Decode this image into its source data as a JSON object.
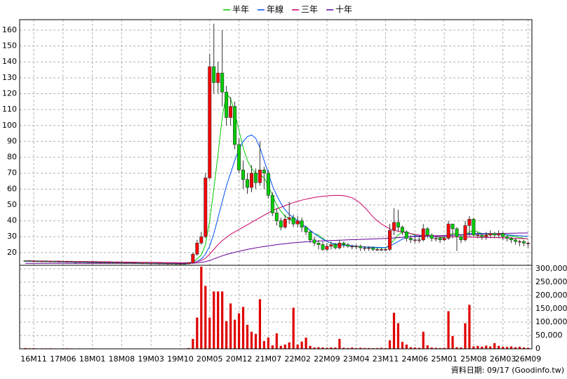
{
  "chart_data": [
    {
      "type": "candlestick",
      "categories": [
        null,
        null,
        "16M11",
        null,
        null,
        null,
        null,
        null,
        null,
        "17M06",
        null,
        null,
        null,
        null,
        null,
        null,
        "18M01",
        null,
        null,
        null,
        null,
        null,
        null,
        "18M08",
        null,
        null,
        null,
        null,
        null,
        null,
        "19M03",
        null,
        null,
        null,
        null,
        null,
        null,
        "19M10",
        null,
        null,
        null,
        null,
        null,
        null,
        "20M05",
        null,
        null,
        null,
        null,
        null,
        null,
        "20M12",
        null,
        null,
        null,
        null,
        null,
        null,
        "21M07",
        null,
        null,
        null,
        null,
        null,
        null,
        "22M02",
        null,
        null,
        null,
        null,
        null,
        null,
        "22M09",
        null,
        null,
        null,
        null,
        null,
        null,
        "23M04",
        null,
        null,
        null,
        null,
        null,
        null,
        "23M11",
        null,
        null,
        null,
        null,
        null,
        null,
        "24M06",
        null,
        null,
        null,
        null,
        null,
        null,
        "25M01",
        null,
        null,
        null,
        null,
        null,
        null,
        "25M08",
        null,
        null,
        null,
        null,
        null,
        null,
        "26M03",
        null,
        null,
        null,
        null,
        null,
        "26M09"
      ],
      "open": [
        14.9,
        14.8,
        14.6,
        14.7,
        14.5,
        14.6,
        14.4,
        14.5,
        14.3,
        14.4,
        14.2,
        14.3,
        14.1,
        14.0,
        14.2,
        14.0,
        13.9,
        14.0,
        13.8,
        13.9,
        13.7,
        13.8,
        13.6,
        13.7,
        13.5,
        13.6,
        13.4,
        13.5,
        13.3,
        13.4,
        13.2,
        13.3,
        13.1,
        13.2,
        13.0,
        13.1,
        13.0,
        12.9,
        13.0,
        12.9,
        13.5,
        19,
        26,
        30,
        67,
        137,
        127,
        133,
        121,
        105,
        112,
        88,
        72,
        66,
        61,
        70,
        64,
        72,
        70,
        56,
        45,
        40,
        36,
        41,
        42,
        38,
        40,
        36,
        33,
        28,
        26,
        25,
        22,
        24,
        25,
        23,
        26,
        25,
        24,
        24,
        24,
        23,
        23,
        23,
        22,
        22,
        22,
        22,
        34,
        39,
        36,
        33,
        29,
        28,
        28,
        28,
        35,
        31,
        29,
        29,
        28,
        29,
        38,
        35,
        30,
        28,
        37,
        41,
        31,
        31,
        30,
        31,
        32,
        31,
        32,
        30,
        29,
        28,
        27,
        27,
        26
      ],
      "high": [
        15.2,
        15.1,
        15.0,
        15.0,
        14.9,
        14.9,
        14.8,
        14.8,
        14.7,
        14.7,
        14.6,
        14.6,
        14.4,
        14.5,
        14.5,
        14.3,
        14.3,
        14.3,
        14.2,
        14.2,
        14.1,
        14.1,
        14.0,
        14.0,
        13.9,
        13.9,
        13.8,
        13.8,
        13.7,
        13.7,
        13.6,
        13.6,
        13.5,
        13.5,
        13.4,
        13.4,
        13.3,
        13.3,
        13.3,
        13.8,
        20,
        28,
        33,
        70,
        145,
        164,
        140,
        160,
        125,
        118,
        115,
        92,
        78,
        70,
        75,
        73,
        90,
        74,
        72,
        58,
        48,
        42,
        44,
        52,
        44,
        43,
        42,
        37,
        34,
        30,
        28,
        27,
        26,
        27,
        26,
        28,
        27,
        26,
        25,
        25,
        25,
        24,
        24,
        24,
        23,
        23,
        23,
        38,
        48,
        47,
        37,
        34,
        31,
        30,
        30,
        38,
        36,
        32,
        30,
        30,
        30,
        40,
        38,
        36,
        31,
        40,
        43,
        42,
        33,
        32,
        33,
        34,
        33,
        34,
        33,
        31,
        30,
        29,
        28,
        28,
        27
      ],
      "low": [
        14.5,
        14.3,
        14.3,
        14.2,
        14.2,
        14.1,
        14.1,
        14.0,
        14.0,
        13.9,
        13.9,
        13.8,
        13.7,
        13.7,
        13.7,
        13.6,
        13.6,
        13.5,
        13.5,
        13.4,
        13.4,
        13.3,
        13.3,
        13.2,
        13.2,
        13.1,
        13.1,
        13.0,
        13.0,
        12.9,
        12.9,
        12.8,
        12.8,
        12.7,
        12.7,
        12.7,
        12.6,
        12.6,
        12.6,
        12.6,
        13,
        18,
        25,
        29,
        66,
        120,
        120,
        112,
        100,
        100,
        85,
        70,
        60,
        57,
        58,
        60,
        62,
        60,
        54,
        43,
        37,
        34,
        35,
        38,
        36,
        36,
        33,
        31,
        26,
        24,
        22,
        21,
        21,
        22,
        22,
        22,
        23,
        23,
        22,
        22,
        21,
        21,
        21,
        21,
        21,
        21,
        21,
        21,
        31,
        33,
        31,
        27,
        26,
        26,
        26,
        27,
        29,
        27,
        27,
        26,
        27,
        28,
        29,
        21,
        26,
        27,
        30,
        30,
        29,
        28,
        28,
        29,
        29,
        29,
        28,
        27,
        26,
        25,
        24,
        24,
        23
      ],
      "close": [
        14.8,
        14.6,
        14.7,
        14.5,
        14.6,
        14.4,
        14.5,
        14.3,
        14.4,
        14.2,
        14.3,
        14.1,
        14.0,
        14.2,
        14.0,
        13.9,
        14.0,
        13.8,
        13.9,
        13.7,
        13.8,
        13.6,
        13.7,
        13.5,
        13.6,
        13.4,
        13.5,
        13.3,
        13.4,
        13.2,
        13.3,
        13.1,
        13.2,
        13.0,
        13.1,
        13.0,
        12.9,
        13.0,
        12.9,
        13.5,
        19,
        26,
        30,
        67,
        137,
        127,
        133,
        121,
        105,
        112,
        88,
        72,
        66,
        61,
        70,
        64,
        72,
        70,
        56,
        45,
        40,
        36,
        41,
        42,
        38,
        40,
        36,
        33,
        28,
        26,
        25,
        22,
        24,
        25,
        23,
        26,
        25,
        24,
        24,
        24,
        23,
        23,
        23,
        22,
        22,
        22,
        22,
        34,
        39,
        36,
        33,
        29,
        28,
        28,
        28,
        35,
        31,
        29,
        29,
        28,
        29,
        38,
        35,
        30,
        28,
        37,
        41,
        31,
        31,
        30,
        31,
        32,
        31,
        32,
        30,
        29,
        28,
        27,
        27,
        26,
        26
      ],
      "up_color": "#ff0000",
      "down_color": "#00cc00",
      "series": [
        {
          "name": "半年",
          "color": "#00cc00",
          "values": [
            14.6,
            14.6,
            14.6,
            14.6,
            14.5,
            14.5,
            14.5,
            14.4,
            14.4,
            14.3,
            14.3,
            14.2,
            14.2,
            14.1,
            14.1,
            14.0,
            14.0,
            13.9,
            13.9,
            13.8,
            13.8,
            13.7,
            13.7,
            13.6,
            13.6,
            13.5,
            13.5,
            13.5,
            13.4,
            13.4,
            13.3,
            13.3,
            13.2,
            13.2,
            13.1,
            13.1,
            13.1,
            13.0,
            13.0,
            13.1,
            14.0,
            16.0,
            18.5,
            25,
            40,
            60,
            82,
            105,
            120,
            117,
            108,
            97,
            86,
            78,
            73,
            70,
            69,
            67,
            62,
            56,
            50,
            46,
            43,
            41,
            40,
            39,
            38,
            36,
            34,
            32,
            31,
            29,
            27,
            26,
            25,
            25,
            24.5,
            24.5,
            24,
            24,
            23.8,
            23.6,
            23.4,
            23.2,
            23,
            23,
            23,
            25,
            28,
            31,
            33,
            33,
            32,
            31,
            30,
            30,
            30.5,
            30.5,
            30,
            29.5,
            29.5,
            31,
            32,
            32,
            31,
            31,
            33,
            34,
            33,
            32,
            31.5,
            31.5,
            31.5,
            31.5,
            31.5,
            31,
            30.5,
            30,
            29.5,
            29,
            28.5
          ]
        },
        {
          "name": "年線",
          "color": "#0050ff",
          "values": [
            14.6,
            14.6,
            14.6,
            14.6,
            14.5,
            14.5,
            14.5,
            14.4,
            14.4,
            14.3,
            14.3,
            14.2,
            14.2,
            14.1,
            14.1,
            14.0,
            14.0,
            13.9,
            13.9,
            13.8,
            13.8,
            13.7,
            13.7,
            13.6,
            13.6,
            13.5,
            13.5,
            13.5,
            13.4,
            13.4,
            13.3,
            13.3,
            13.2,
            13.2,
            13.1,
            13.1,
            13.1,
            13.0,
            13.0,
            13.1,
            13.5,
            14.5,
            16,
            19,
            24,
            32,
            42,
            52,
            62,
            70,
            78,
            85,
            90,
            93,
            94,
            92,
            86,
            78,
            70,
            62,
            56,
            51,
            47,
            44,
            42,
            40,
            38,
            36,
            34,
            32,
            30,
            28.5,
            27,
            26,
            25.5,
            25,
            24.7,
            24.5,
            24.3,
            24,
            23.8,
            23.6,
            23.5,
            23.4,
            23.3,
            23.2,
            23.2,
            24,
            25.5,
            27,
            28.5,
            29.5,
            30,
            30.5,
            30.5,
            30.5,
            30.5,
            30.3,
            30,
            30,
            30,
            30.5,
            31,
            31,
            31,
            31.5,
            32,
            32,
            32,
            32,
            32,
            32,
            31.8,
            31.6,
            31.4,
            31.2,
            31,
            30.8,
            30.6,
            30.4,
            30.2
          ]
        },
        {
          "name": "三年",
          "color": "#cc0066",
          "values": [
            14.8,
            14.8,
            14.8,
            14.7,
            14.7,
            14.7,
            14.6,
            14.6,
            14.6,
            14.5,
            14.5,
            14.5,
            14.4,
            14.4,
            14.4,
            14.3,
            14.3,
            14.3,
            14.2,
            14.2,
            14.2,
            14.1,
            14.1,
            14.1,
            14.0,
            14.0,
            14.0,
            13.9,
            13.9,
            13.9,
            13.8,
            13.8,
            13.8,
            13.7,
            13.7,
            13.7,
            13.7,
            13.6,
            13.6,
            13.7,
            13.8,
            14.2,
            15,
            16.5,
            19,
            22,
            25,
            27.5,
            29.5,
            31.5,
            33,
            34.5,
            36,
            37.5,
            39,
            40.5,
            42,
            43.5,
            45,
            46.5,
            47.5,
            48.5,
            49.5,
            50.5,
            51.5,
            52.3,
            53,
            53.6,
            54.2,
            54.7,
            55.1,
            55.4,
            55.7,
            55.9,
            56,
            56,
            55.8,
            55.3,
            54.5,
            53,
            51,
            48.5,
            45.5,
            42.5,
            40,
            38,
            36.5,
            35,
            34,
            33.5,
            33,
            32.5,
            32,
            31.5,
            31,
            30.8,
            30.6,
            30.4,
            30.2,
            30,
            30,
            30,
            30,
            30,
            29.8,
            29.8,
            29.8,
            29.6,
            29.6,
            29.6,
            29.5,
            29.5,
            29.4,
            29.4,
            29.3,
            29.2,
            29.1,
            29,
            28.9,
            28.8,
            28.7
          ]
        },
        {
          "name": "十年",
          "color": "#660099",
          "values": [
            13.2,
            13.2,
            13.2,
            13.2,
            13.2,
            13.2,
            13.2,
            13.2,
            13.2,
            13.2,
            13.2,
            13.2,
            13.2,
            13.2,
            13.2,
            13.2,
            13.2,
            13.2,
            13.2,
            13.2,
            13.2,
            13.2,
            13.2,
            13.2,
            13.2,
            13.2,
            13.2,
            13.2,
            13.2,
            13.2,
            13.2,
            13.2,
            13.2,
            13.2,
            13.2,
            13.2,
            13.2,
            13.2,
            13.2,
            13.2,
            13.3,
            13.5,
            13.8,
            14.3,
            15,
            16,
            17,
            18,
            18.8,
            19.5,
            20.2,
            20.8,
            21.4,
            22,
            22.5,
            23,
            23.4,
            23.8,
            24.2,
            24.6,
            25,
            25.3,
            25.6,
            25.9,
            26.2,
            26.4,
            26.6,
            26.8,
            27,
            27.2,
            27.3,
            27.4,
            27.5,
            27.6,
            27.7,
            27.8,
            27.9,
            28,
            28.1,
            28.2,
            28.3,
            28.4,
            28.5,
            28.6,
            28.7,
            28.8,
            28.9,
            29,
            29.2,
            29.4,
            29.6,
            29.8,
            30,
            30.1,
            30.2,
            30.3,
            30.4,
            30.5,
            30.6,
            30.7,
            30.8,
            30.9,
            31,
            31.1,
            31.2,
            31.3,
            31.4,
            31.5,
            31.6,
            31.7,
            31.8,
            31.9,
            32,
            32,
            32.1,
            32.1,
            32.2,
            32.2,
            32.3,
            32.3,
            32.4
          ]
        }
      ],
      "ylim": [
        12,
        166.6
      ],
      "yticks": [
        20,
        30,
        40,
        50,
        60,
        70,
        80,
        90,
        100,
        110,
        120,
        130,
        140,
        150,
        160
      ],
      "grid": true,
      "legend": "top"
    },
    {
      "type": "bar",
      "color": "#e00000",
      "values": [
        3000,
        2000,
        2500,
        1500,
        2000,
        1800,
        2200,
        1500,
        1200,
        1800,
        2000,
        1500,
        1300,
        1700,
        1400,
        1200,
        1600,
        1300,
        1100,
        1500,
        1200,
        1000,
        1400,
        1100,
        900,
        1300,
        1000,
        800,
        1200,
        900,
        1000,
        1100,
        800,
        900,
        1000,
        800,
        900,
        1200,
        1500,
        3000,
        37000,
        117000,
        308000,
        236000,
        117000,
        215000,
        215000,
        215000,
        104000,
        170000,
        109000,
        133000,
        157000,
        90000,
        64000,
        56000,
        186000,
        29000,
        42000,
        13000,
        58000,
        11000,
        16000,
        24000,
        154000,
        16000,
        27000,
        42000,
        11000,
        5000,
        6000,
        5000,
        4000,
        5000,
        5000,
        37000,
        4000,
        3000,
        5000,
        3000,
        4000,
        3000,
        3000,
        2500,
        3000,
        4000,
        3000,
        32000,
        135000,
        96000,
        26000,
        16000,
        6000,
        5000,
        4000,
        64000,
        13000,
        5000,
        4000,
        3000,
        4000,
        141000,
        48000,
        6000,
        5000,
        96000,
        165000,
        9000,
        11000,
        8000,
        12000,
        9000,
        21000,
        11000,
        8000,
        7000,
        9000,
        6000,
        8000,
        5000,
        4000
      ],
      "ylim": [
        0,
        313000
      ],
      "yticks": [
        0,
        {
          "value": 50000,
          "label": "50,000"
        },
        {
          "value": 100000,
          "label": "100,000"
        },
        {
          "value": 150000,
          "label": "150,000"
        },
        {
          "value": 200000,
          "label": "200,000"
        },
        {
          "value": 250000,
          "label": "250,000"
        },
        {
          "value": 300000,
          "label": "300,000"
        }
      ],
      "grid": true,
      "note": "資料日期: 09/17  (Goodinfo.tw)"
    }
  ]
}
